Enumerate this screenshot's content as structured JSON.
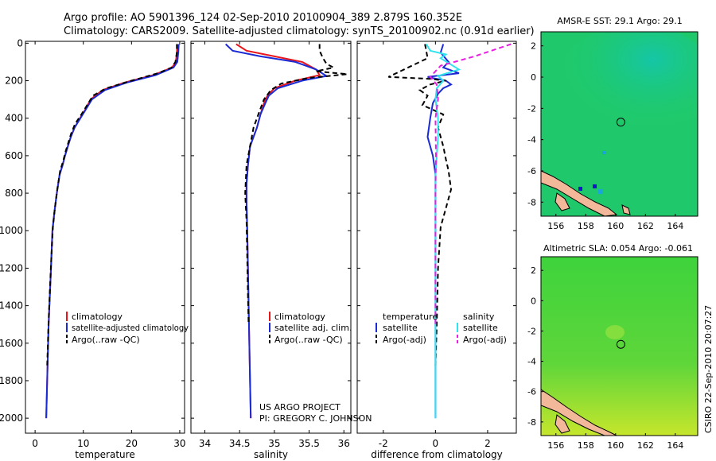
{
  "header": {
    "line1": "Argo profile: AO 5901396_124 02-Sep-2010 20100904_389 2.879S 160.352E",
    "line2": "Climatology: CARS2009. Satellite-adjusted climatology: synTS_20100902.nc (0.91d earlier)"
  },
  "credits": {
    "project": "US ARGO PROJECT",
    "pi": "PI: GREGORY C. JOHNSON",
    "stamp": "CSIRO 22-Sep-2010 20:07:27"
  },
  "colors": {
    "climatology": "#e8151b",
    "satellite": "#1a2bd6",
    "argo": "#000000",
    "satellite_diff": "#2fe3ef",
    "argo_adj_diff": "#e81ee0",
    "land": "#f2b899",
    "sst_field": "#1fc96b",
    "sla_field": "#4ad23b"
  },
  "chart_data": [
    {
      "type": "line",
      "name": "temperature-profile",
      "xlabel": "temperature",
      "ylabel": "",
      "xlim": [
        -2,
        31
      ],
      "ylim": [
        2080,
        -10
      ],
      "xticks": [
        0,
        10,
        20,
        30
      ],
      "yticks": [
        0,
        200,
        400,
        600,
        800,
        1000,
        1200,
        1400,
        1600,
        1800,
        2000
      ],
      "legend": [
        "climatology",
        "satellite-adjusted climatology",
        "Argo(..raw -QC)"
      ],
      "series": [
        {
          "name": "climatology",
          "style": "solid",
          "color": "#e8151b",
          "x": [
            29.5,
            29.4,
            29.2,
            28.4,
            24.5,
            18.5,
            14.0,
            11.5,
            10.5,
            9.3,
            8.2,
            7.4,
            6.8,
            6.2,
            5.7,
            5.1,
            4.5,
            4.0,
            3.6,
            3.3,
            2.8,
            2.5,
            2.3
          ],
          "y": [
            5,
            50,
            100,
            130,
            170,
            210,
            250,
            300,
            350,
            400,
            450,
            500,
            550,
            600,
            650,
            700,
            800,
            900,
            1000,
            1200,
            1500,
            1800,
            2000
          ]
        },
        {
          "name": "satellite-adjusted climatology",
          "style": "solid",
          "color": "#1a2bd6",
          "x": [
            29.8,
            29.7,
            29.5,
            28.7,
            25.0,
            19.0,
            14.5,
            11.8,
            10.6,
            9.4,
            8.2,
            7.4,
            6.8,
            6.2,
            5.7,
            5.1,
            4.5,
            4.0,
            3.6,
            3.3,
            2.8,
            2.5,
            2.3
          ],
          "y": [
            5,
            50,
            100,
            130,
            170,
            210,
            250,
            300,
            350,
            400,
            450,
            500,
            550,
            600,
            650,
            700,
            800,
            900,
            1000,
            1200,
            1500,
            1800,
            2000
          ]
        },
        {
          "name": "Argo(..raw -QC)",
          "style": "dashed",
          "color": "#000000",
          "x": [
            29.4,
            29.4,
            29.1,
            28.3,
            25.5,
            20.0,
            14.8,
            12.0,
            10.8,
            9.6,
            8.3,
            7.5,
            6.9,
            6.3,
            5.8,
            5.2,
            4.6,
            4.1,
            3.7,
            3.3,
            2.8,
            2.5
          ],
          "y": [
            5,
            50,
            100,
            130,
            160,
            200,
            240,
            280,
            330,
            380,
            430,
            480,
            530,
            580,
            630,
            680,
            780,
            880,
            980,
            1180,
            1480,
            1720
          ]
        }
      ]
    },
    {
      "type": "line",
      "name": "salinity-profile",
      "xlabel": "salinity",
      "ylabel": "",
      "xlim": [
        33.8,
        36.1
      ],
      "ylim": [
        2080,
        -10
      ],
      "xticks": [
        34,
        34.5,
        35,
        35.5,
        36
      ],
      "legend": [
        "climatology",
        "satellite adj. clim.",
        "Argo(..raw -QC)"
      ],
      "series": [
        {
          "name": "climatology",
          "style": "solid",
          "color": "#e8151b",
          "x": [
            34.45,
            34.6,
            35.0,
            35.4,
            35.6,
            35.65,
            35.3,
            35.0,
            34.9,
            34.85,
            34.8,
            34.75,
            34.65,
            34.62,
            34.6,
            34.6,
            34.61,
            34.62,
            34.63,
            34.64,
            34.65,
            34.66
          ],
          "y": [
            5,
            40,
            70,
            100,
            140,
            170,
            200,
            240,
            280,
            320,
            380,
            450,
            550,
            650,
            750,
            850,
            1000,
            1200,
            1400,
            1600,
            1800,
            2000
          ]
        },
        {
          "name": "satellite adj. clim.",
          "style": "solid",
          "color": "#1a2bd6",
          "x": [
            34.3,
            34.4,
            34.8,
            35.3,
            35.6,
            35.75,
            35.4,
            35.05,
            34.92,
            34.87,
            34.8,
            34.75,
            34.65,
            34.62,
            34.6,
            34.6,
            34.61,
            34.62,
            34.63,
            34.64,
            34.65,
            34.66
          ],
          "y": [
            5,
            40,
            70,
            100,
            140,
            175,
            200,
            240,
            280,
            320,
            380,
            450,
            550,
            650,
            750,
            850,
            1000,
            1200,
            1400,
            1600,
            1800,
            2000
          ]
        },
        {
          "name": "Argo(..raw -QC)",
          "style": "dashed",
          "color": "#000000",
          "x": [
            35.65,
            35.65,
            35.7,
            35.75,
            35.85,
            35.6,
            36.05,
            35.5,
            35.1,
            34.95,
            34.85,
            34.78,
            34.7,
            34.65,
            34.6,
            34.58,
            34.6,
            34.61,
            34.62,
            34.63
          ],
          "y": [
            5,
            40,
            80,
            110,
            130,
            150,
            165,
            185,
            215,
            250,
            300,
            370,
            450,
            550,
            650,
            800,
            950,
            1150,
            1350,
            1500
          ]
        }
      ]
    },
    {
      "type": "line",
      "name": "difference-profile",
      "xlabel": "difference from climatology",
      "ylabel": "",
      "xlim": [
        -3.0,
        3.1
      ],
      "ylim": [
        2080,
        -10
      ],
      "xticks": [
        -2,
        0,
        2
      ],
      "legend": [
        "temperature",
        "satellite",
        "Argo(-adj)",
        "salinity",
        "satellite",
        "Argo(-adj)"
      ],
      "series": [
        {
          "name": "temperature satellite",
          "style": "solid",
          "color": "#1a2bd6",
          "x": [
            0.3,
            0.2,
            0.5,
            0.3,
            0.9,
            -0.3,
            0.4,
            0.6,
            0.3,
            0.1,
            -0.1,
            -0.2,
            -0.3,
            -0.1,
            0.0,
            0.0,
            0.0,
            0.0,
            0.0,
            0.0
          ],
          "y": [
            5,
            50,
            100,
            130,
            160,
            180,
            200,
            220,
            240,
            270,
            320,
            400,
            500,
            600,
            700,
            900,
            1200,
            1500,
            1800,
            2000
          ]
        },
        {
          "name": "temperature Argo(-adj)",
          "style": "dashed",
          "color": "#000000",
          "x": [
            -0.4,
            -0.3,
            -1.8,
            -0.2,
            0.4,
            -0.2,
            -0.6,
            -0.3,
            -0.5,
            0.3,
            0.1,
            0.3,
            0.4,
            0.5,
            0.6,
            0.4,
            0.2,
            0.1,
            0.05,
            0.0
          ],
          "y": [
            5,
            80,
            180,
            190,
            200,
            220,
            250,
            280,
            330,
            380,
            450,
            550,
            620,
            680,
            780,
            880,
            980,
            1200,
            1500,
            1720
          ]
        },
        {
          "name": "salinity satellite",
          "style": "solid",
          "color": "#2fe3ef",
          "x": [
            -0.35,
            -0.2,
            0.4,
            0.2,
            0.9,
            0.1,
            0.3,
            0.05,
            0.0,
            0.1,
            0.1,
            0.05,
            0.0,
            0.0,
            0.0,
            0.0,
            0.0,
            0.0,
            0.0,
            0.0
          ],
          "y": [
            5,
            40,
            60,
            80,
            140,
            175,
            200,
            240,
            300,
            400,
            500,
            600,
            700,
            800,
            1000,
            1200,
            1400,
            1600,
            1800,
            2000
          ]
        },
        {
          "name": "salinity Argo(-adj)",
          "style": "dashed",
          "color": "#e81ee0",
          "x": [
            2.9,
            1.5,
            0.2,
            -0.2,
            0.05,
            0.1,
            0.0,
            0.02,
            0.0,
            0.0,
            0.0
          ],
          "y": [
            5,
            70,
            120,
            180,
            220,
            300,
            400,
            600,
            800,
            1000,
            1500
          ]
        }
      ]
    },
    {
      "type": "heatmap",
      "name": "sst-map",
      "title": "AMSR-E SST: 29.1  Argo: 29.1",
      "xlim": [
        155,
        165.5
      ],
      "ylim": [
        -8.9,
        2.9
      ],
      "xticks": [
        156,
        158,
        160,
        162,
        164
      ],
      "yticks": [
        2,
        0,
        -2,
        -4,
        -6,
        -8
      ],
      "marker": {
        "lon": 160.35,
        "lat": -2.88
      }
    },
    {
      "type": "heatmap",
      "name": "sla-map",
      "title": "Altimetric SLA: 0.054  Argo: -0.061",
      "xlim": [
        155,
        165.5
      ],
      "ylim": [
        -8.9,
        2.9
      ],
      "xticks": [
        156,
        158,
        160,
        162,
        164
      ],
      "yticks": [
        2,
        0,
        -2,
        -4,
        -6,
        -8
      ],
      "marker": {
        "lon": 160.35,
        "lat": -2.88
      }
    }
  ]
}
